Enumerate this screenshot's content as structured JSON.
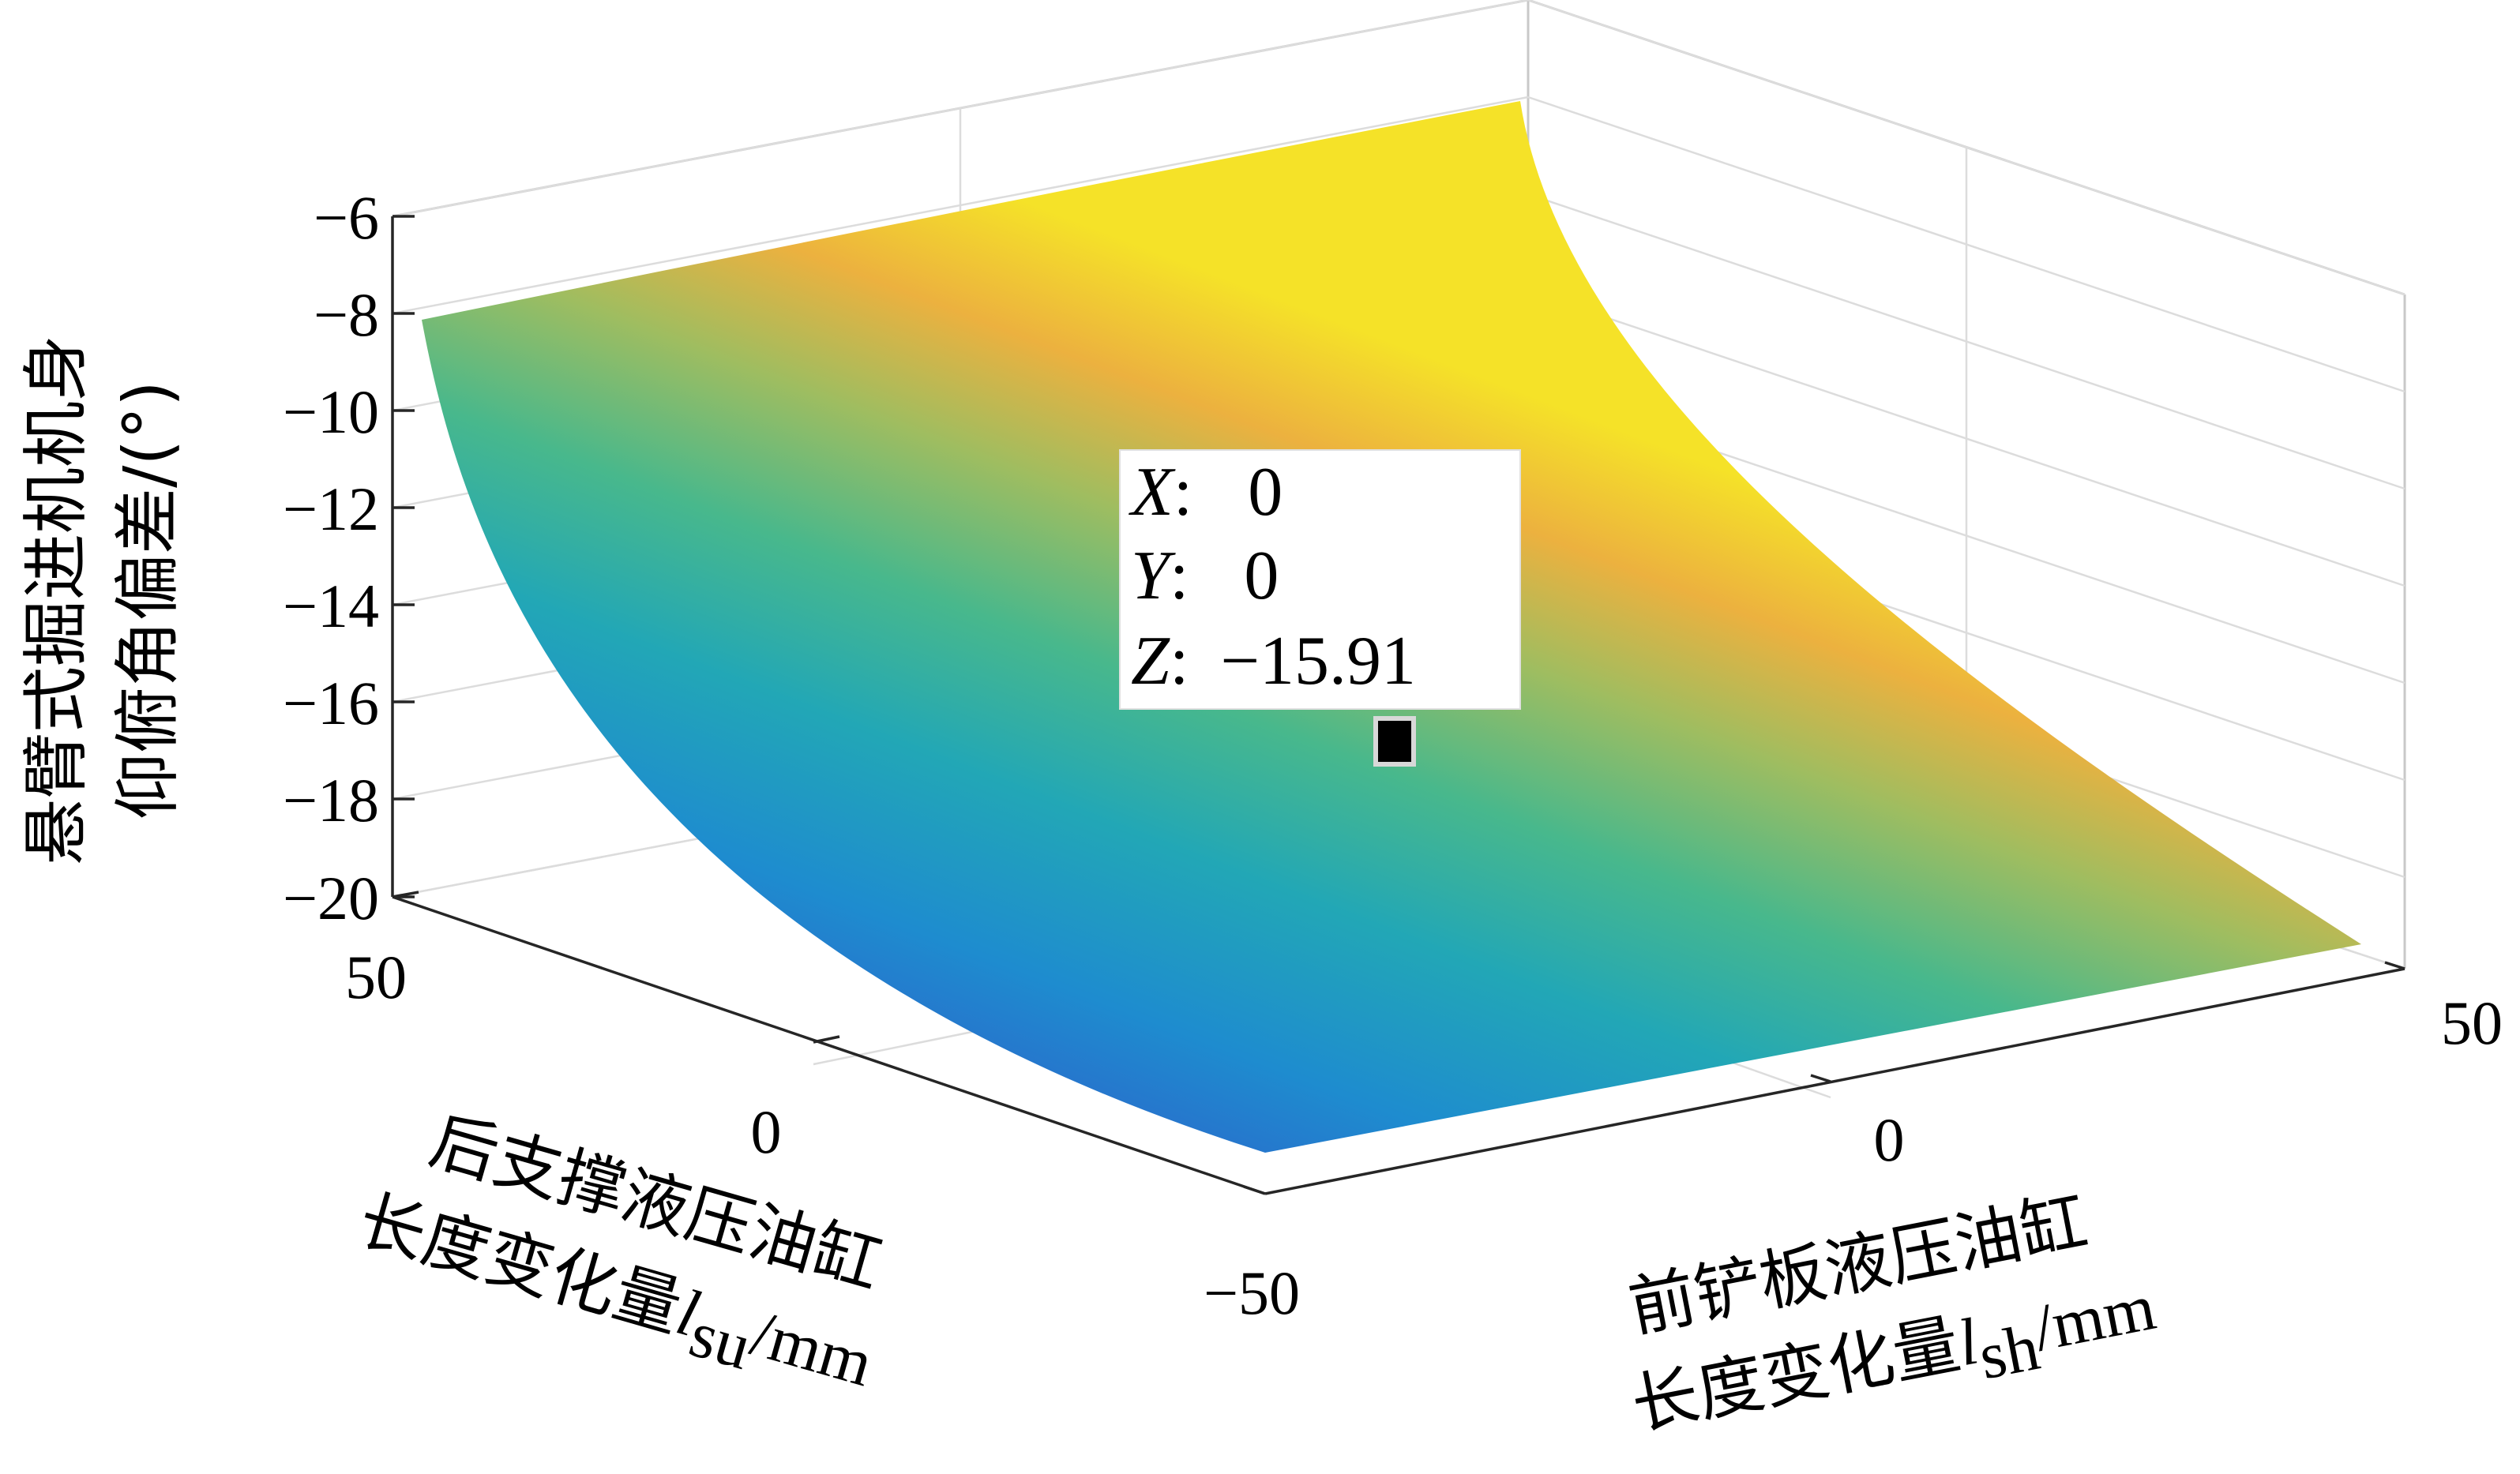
{
  "chart_data": {
    "type": "surface",
    "zlabel_lines": [
      "悬臂式掘进机机身",
      "仰俯角偏差/(°)"
    ],
    "xaxis": {
      "label_line1": "前铲板液压油缸",
      "label_line2": "长度变化量",
      "symbol": "l",
      "subscript": "sh",
      "unit": "/mm",
      "ticks": [
        "−50",
        "0",
        "50"
      ],
      "range": [
        -50,
        50
      ]
    },
    "yaxis": {
      "label_line1": "后支撑液压油缸",
      "label_line2": "长度变化量",
      "symbol": "l",
      "subscript": "su",
      "unit": "/mm",
      "ticks": [
        "50",
        "0",
        "−50"
      ],
      "range": [
        -50,
        50
      ]
    },
    "zaxis": {
      "ticks": [
        "−6",
        "−8",
        "−10",
        "−12",
        "−14",
        "−16",
        "−18",
        "−20"
      ],
      "range": [
        -20,
        -6
      ]
    },
    "surface_corners": {
      "x_-50_y_-50": -20.0,
      "x_50_y_-50": -19.4,
      "x_-50_y_50": -8.1,
      "x_50_y_50": -6.2
    },
    "datatip": {
      "x_label": "X",
      "y_label": "Y",
      "z_label": "Z",
      "x": "0",
      "y": "0",
      "z": "−15.91"
    },
    "colormap": [
      "#3e26a8",
      "#2f5eca",
      "#1e8ccf",
      "#22a7b6",
      "#48b88c",
      "#9fbd60",
      "#ecb13f",
      "#f5e228"
    ]
  }
}
